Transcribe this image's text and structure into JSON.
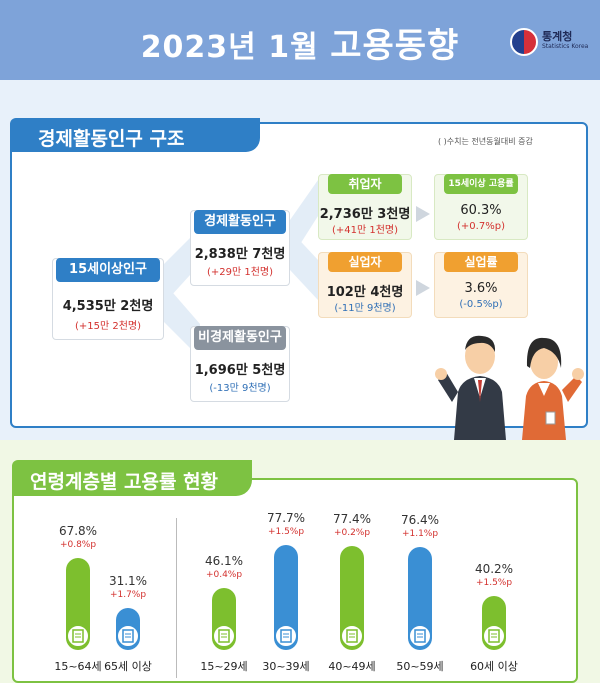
{
  "header": {
    "title_year": "2023년",
    "title_month": "1월",
    "title_main": "고용동향",
    "logo_name": "통계청",
    "logo_sub": "Statistics Korea"
  },
  "structure": {
    "section_title": "경제활동인구 구조",
    "note": "( )수치는 전년동월대비 증감",
    "population15": {
      "label": "15세이상인구",
      "value": "4,535만 2천명",
      "change": "(+15만 2천명)"
    },
    "active": {
      "label": "경제활동인구",
      "value": "2,838만 7천명",
      "change": "(+29만 1천명)"
    },
    "inactive": {
      "label": "비경제활동인구",
      "value": "1,696만 5천명",
      "change": "(-13만 9천명)"
    },
    "employed": {
      "label": "취업자",
      "value": "2,736만 3천명",
      "change": "(+41만 1천명)"
    },
    "unemployed": {
      "label": "실업자",
      "value": "102만 4천명",
      "change": "(-11만 9천명)"
    },
    "employment_rate": {
      "label": "15세이상 고용률",
      "value": "60.3%",
      "change": "(+0.7%p)"
    },
    "unemployment_rate": {
      "label": "실업률",
      "value": "3.6%",
      "change": "(-0.5%p)"
    }
  },
  "age_section": {
    "section_title": "연령계층별 고용률 현황",
    "groups": [
      {
        "age": "15~64세",
        "rate": "67.8%",
        "change": "+0.8%p",
        "rate_value": 67.8,
        "color": "#7dbf2e"
      },
      {
        "age": "65세 이상",
        "rate": "31.1%",
        "change": "+1.7%p",
        "rate_value": 31.1,
        "color": "#3a8fd4"
      },
      {
        "age": "15~29세",
        "rate": "46.1%",
        "change": "+0.4%p",
        "rate_value": 46.1,
        "color": "#7dbf2e"
      },
      {
        "age": "30~39세",
        "rate": "77.7%",
        "change": "+1.5%p",
        "rate_value": 77.7,
        "color": "#3a8fd4"
      },
      {
        "age": "40~49세",
        "rate": "77.4%",
        "change": "+0.2%p",
        "rate_value": 77.4,
        "color": "#7dbf2e"
      },
      {
        "age": "50~59세",
        "rate": "76.4%",
        "change": "+1.1%p",
        "rate_value": 76.4,
        "color": "#3a8fd4"
      },
      {
        "age": "60세 이상",
        "rate": "40.2%",
        "change": "+1.5%p",
        "rate_value": 40.2,
        "color": "#7dbf2e"
      }
    ]
  },
  "colors": {
    "header_bg": "#7ea3d9",
    "blue_accent": "#2f7fc6",
    "green_accent": "#7dc242",
    "orange_accent": "#f0a030",
    "gray_label": "#8a939e",
    "increase": "#d3312e",
    "decrease": "#2f6fb6"
  }
}
